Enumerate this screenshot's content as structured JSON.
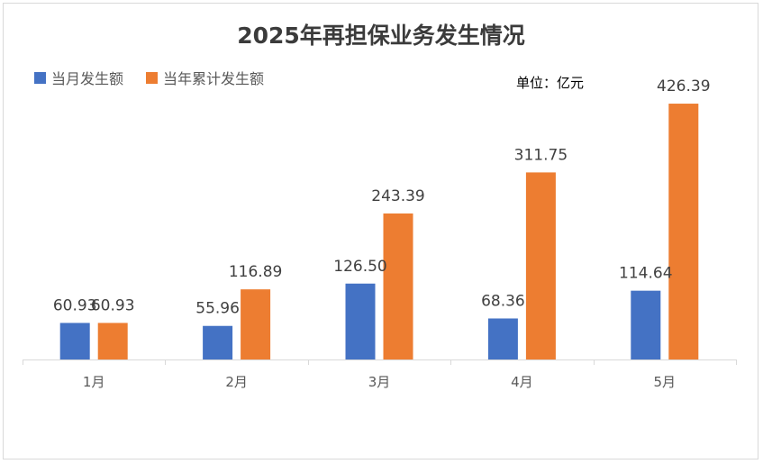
{
  "chart_data": {
    "type": "bar",
    "title": "2025年再担保业务发生情况",
    "unit_label": "单位：亿元",
    "categories": [
      "1月",
      "2月",
      "3月",
      "4月",
      "5月"
    ],
    "series": [
      {
        "name": "当月发生额",
        "color": "#4472c4",
        "values": [
          60.93,
          55.96,
          126.5,
          68.36,
          114.64
        ],
        "labels": [
          "60.93",
          "55.96",
          "126.50",
          "68.36",
          "114.64"
        ]
      },
      {
        "name": "当年累计发生额",
        "color": "#ed7d31",
        "values": [
          60.93,
          116.89,
          243.39,
          311.75,
          426.39
        ],
        "labels": [
          "60.93",
          "116.89",
          "243.39",
          "311.75",
          "426.39"
        ]
      }
    ],
    "ylim": [
      0,
      470
    ],
    "grid": false,
    "legend_position": "top-left"
  }
}
